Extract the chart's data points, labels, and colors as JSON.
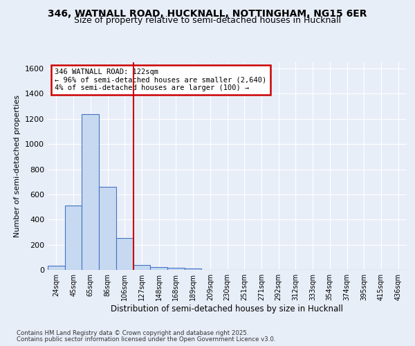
{
  "title1": "346, WATNALL ROAD, HUCKNALL, NOTTINGHAM, NG15 6ER",
  "title2": "Size of property relative to semi-detached houses in Hucknall",
  "xlabel": "Distribution of semi-detached houses by size in Hucknall",
  "ylabel": "Number of semi-detached properties",
  "categories": [
    "24sqm",
    "45sqm",
    "65sqm",
    "86sqm",
    "106sqm",
    "127sqm",
    "148sqm",
    "168sqm",
    "189sqm",
    "209sqm",
    "230sqm",
    "251sqm",
    "271sqm",
    "292sqm",
    "312sqm",
    "333sqm",
    "354sqm",
    "374sqm",
    "395sqm",
    "415sqm",
    "436sqm"
  ],
  "values": [
    32,
    510,
    1235,
    660,
    255,
    40,
    22,
    18,
    12,
    0,
    0,
    0,
    0,
    0,
    0,
    0,
    0,
    0,
    0,
    0,
    0
  ],
  "bar_color": "#c6d9f0",
  "bar_edge_color": "#4472c4",
  "vline_color": "#cc0000",
  "annotation_text": "346 WATNALL ROAD: 122sqm\n← 96% of semi-detached houses are smaller (2,640)\n4% of semi-detached houses are larger (100) →",
  "annotation_box_color": "#cc0000",
  "ylim": [
    0,
    1650
  ],
  "yticks": [
    0,
    200,
    400,
    600,
    800,
    1000,
    1200,
    1400,
    1600
  ],
  "footer1": "Contains HM Land Registry data © Crown copyright and database right 2025.",
  "footer2": "Contains public sector information licensed under the Open Government Licence v3.0.",
  "background_color": "#e8eef8",
  "plot_bg_color": "#e8eef8",
  "title1_fontsize": 10,
  "title2_fontsize": 9,
  "grid_color": "#ffffff"
}
